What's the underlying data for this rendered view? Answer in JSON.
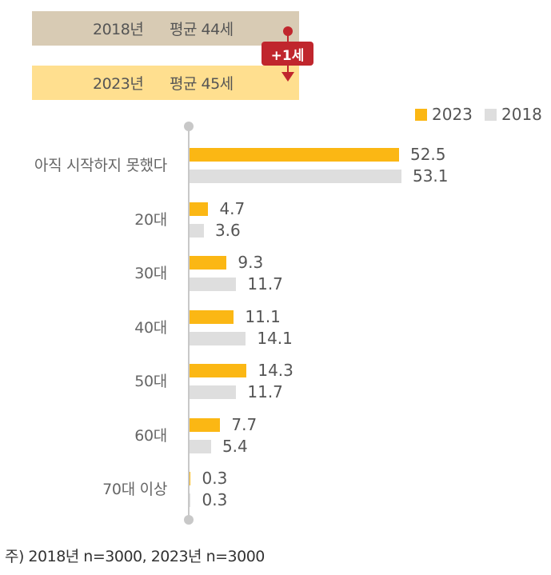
{
  "averages": {
    "y2018": {
      "year": "2018년",
      "text": "평균 44세"
    },
    "y2023": {
      "year": "2023년",
      "text": "평균 45세"
    },
    "difference": "+1세"
  },
  "legend": {
    "s2023": "2023",
    "s2018": "2018"
  },
  "footnote": "주) 2018년 n=3000, 2023년 n=3000",
  "colors": {
    "s2023": "#fbb714",
    "s2018": "#dedede",
    "accent": "#c0262d"
  },
  "chart_data": {
    "type": "bar",
    "orientation": "horizontal",
    "categories": [
      "아직 시작하지 못했다",
      "20대",
      "30대",
      "40대",
      "50대",
      "60대",
      "70대 이상"
    ],
    "series": [
      {
        "name": "2023",
        "values": [
          52.5,
          4.7,
          9.3,
          11.1,
          14.3,
          7.7,
          0.3
        ]
      },
      {
        "name": "2018",
        "values": [
          53.1,
          3.6,
          11.7,
          14.1,
          11.7,
          5.4,
          0.3
        ]
      }
    ],
    "value_labels": [
      [
        "52.5",
        "4.7",
        "9.3",
        "11.1",
        "14.3",
        "7.7",
        "0.3"
      ],
      [
        "53.1",
        "3.6",
        "11.7",
        "14.1",
        "11.7",
        "5.4",
        "0.3"
      ]
    ],
    "xlim": [
      0,
      55
    ],
    "legend_position": "top-right"
  }
}
